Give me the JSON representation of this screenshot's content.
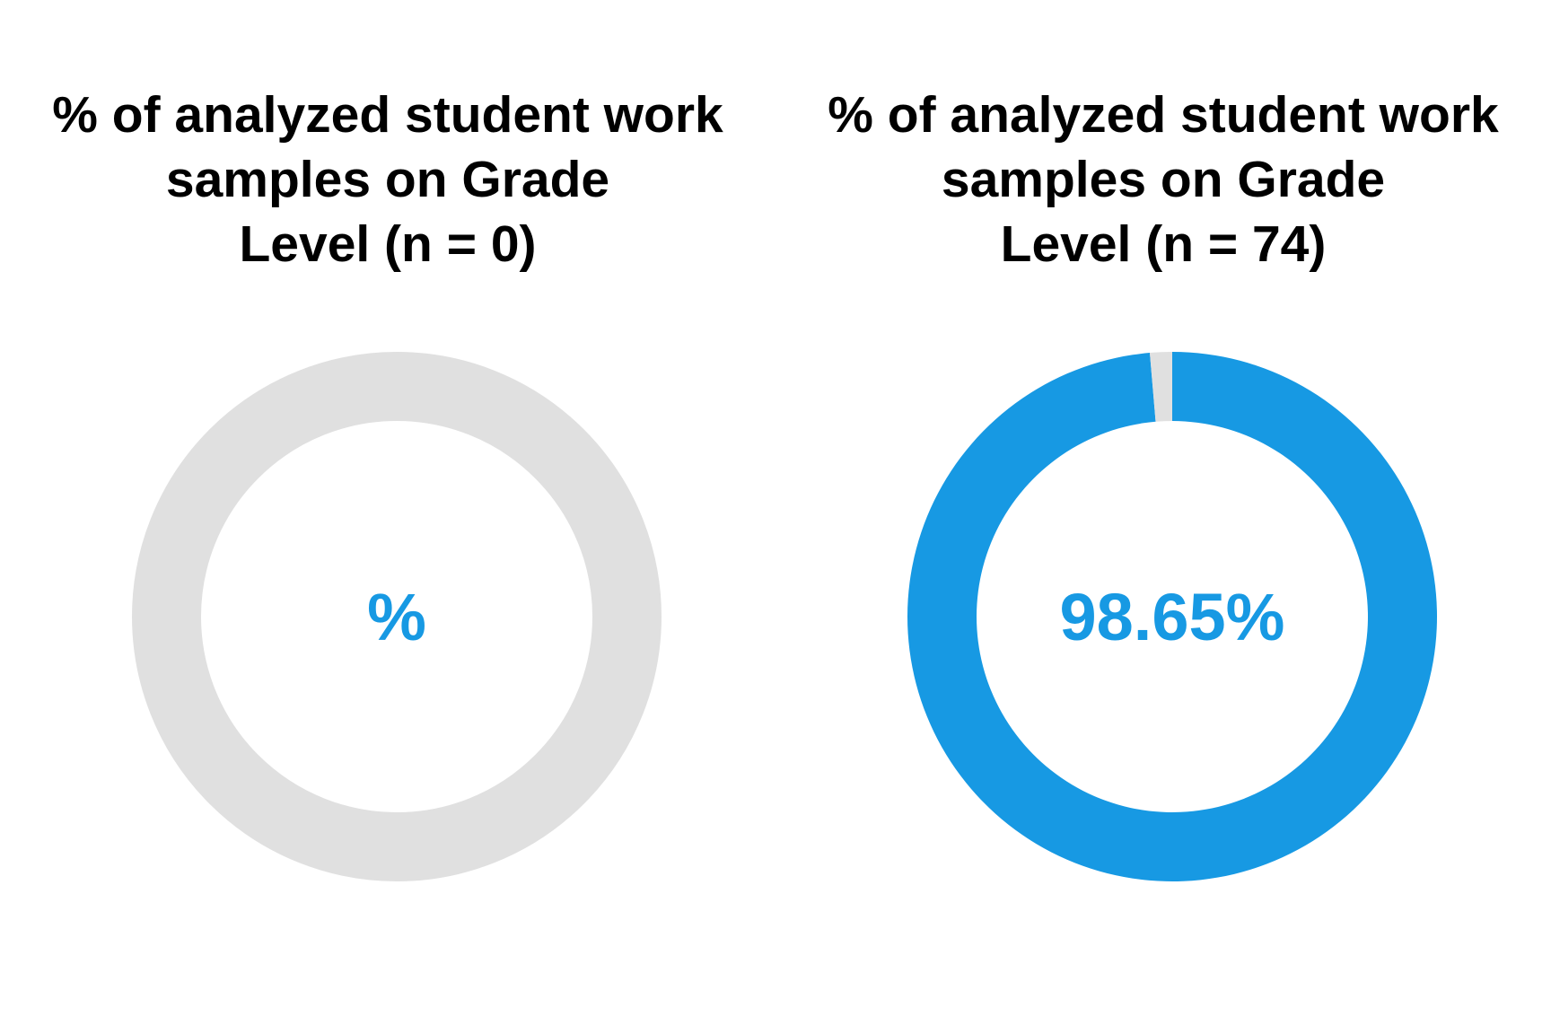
{
  "colors": {
    "accent": "#1799E3",
    "track": "#E0E0E0",
    "text": "#000000",
    "background": "#FFFFFF"
  },
  "chart_data": [
    {
      "type": "pie",
      "title": "% of analyzed student work samples on Grade Level (n = 0)",
      "title_lines": [
        "% of analyzed student work",
        "samples on Grade",
        "Level (n = 0)"
      ],
      "center_label": "%",
      "slices": [
        {
          "label": "",
          "value": 0,
          "color": "#1799E3"
        },
        {
          "label": "",
          "value": 100,
          "color": "#E0E0E0"
        }
      ]
    },
    {
      "type": "pie",
      "title": "% of analyzed student work samples on Grade Level (n = 74)",
      "title_lines": [
        "% of analyzed student work",
        "samples on Grade",
        "Level (n = 74)"
      ],
      "center_label": "98.65%",
      "slices": [
        {
          "label": "",
          "value": 98.65,
          "color": "#1799E3"
        },
        {
          "label": "",
          "value": 1.35,
          "color": "#E0E0E0"
        }
      ]
    }
  ]
}
